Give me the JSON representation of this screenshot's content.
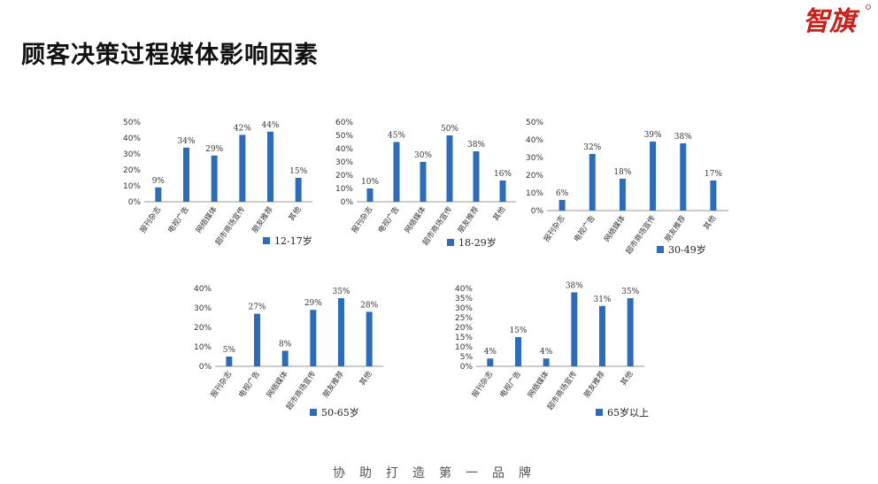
{
  "slide": {
    "title": "顾客决策过程媒体影响因素",
    "logo_text": "智旗",
    "footer": "协助打造第一品牌",
    "bar_color": "#2e6bb8"
  },
  "chart_data": [
    {
      "type": "bar",
      "categories": [
        "报刊杂志",
        "电视广告",
        "网络媒体",
        "超市商场宣传",
        "朋友推荐",
        "其他"
      ],
      "series": [
        {
          "name": "12-17岁",
          "values": [
            9,
            34,
            29,
            42,
            44,
            15
          ]
        }
      ],
      "data_labels": [
        "9%",
        "34%",
        "29%",
        "42%",
        "44%",
        "15%"
      ],
      "yticks": [
        "0%",
        "10%",
        "20%",
        "30%",
        "40%",
        "50%"
      ],
      "ylim": [
        0,
        50
      ],
      "legend": "bottom-right"
    },
    {
      "type": "bar",
      "categories": [
        "报刊杂志",
        "电视广告",
        "网络媒体",
        "超市商场宣传",
        "朋友推荐",
        "其他"
      ],
      "series": [
        {
          "name": "18-29岁",
          "values": [
            10,
            45,
            30,
            50,
            38,
            16
          ]
        }
      ],
      "data_labels": [
        "10%",
        "45%",
        "30%",
        "50%",
        "38%",
        "16%"
      ],
      "yticks": [
        "0%",
        "10%",
        "20%",
        "30%",
        "40%",
        "50%",
        "60%"
      ],
      "ylim": [
        0,
        60
      ],
      "legend": "bottom-right"
    },
    {
      "type": "bar",
      "categories": [
        "报刊杂志",
        "电视广告",
        "网络媒体",
        "超市商场宣传",
        "朋友推荐",
        "其他"
      ],
      "series": [
        {
          "name": "30-49岁",
          "values": [
            6,
            32,
            18,
            39,
            38,
            17
          ]
        }
      ],
      "data_labels": [
        "6%",
        "32%",
        "18%",
        "39%",
        "38%",
        "17%"
      ],
      "yticks": [
        "0%",
        "10%",
        "20%",
        "30%",
        "40%",
        "50%"
      ],
      "ylim": [
        0,
        50
      ],
      "legend": "bottom-right"
    },
    {
      "type": "bar",
      "categories": [
        "报刊杂志",
        "电视广告",
        "网络媒体",
        "超市商场宣传",
        "朋友推荐",
        "其他"
      ],
      "series": [
        {
          "name": "50-65岁",
          "values": [
            5,
            27,
            8,
            29,
            35,
            28
          ]
        }
      ],
      "data_labels": [
        "5%",
        "27%",
        "8%",
        "29%",
        "35%",
        "28%"
      ],
      "yticks": [
        "0%",
        "10%",
        "20%",
        "30%",
        "40%"
      ],
      "ylim": [
        0,
        40
      ],
      "legend": "bottom-right"
    },
    {
      "type": "bar",
      "categories": [
        "报刊杂志",
        "电视广告",
        "网络媒体",
        "超市商场宣传",
        "朋友推荐",
        "其他"
      ],
      "series": [
        {
          "name": "65岁以上",
          "values": [
            4,
            15,
            4,
            38,
            31,
            35
          ]
        }
      ],
      "data_labels": [
        "4%",
        "15%",
        "4%",
        "38%",
        "31%",
        "35%"
      ],
      "yticks": [
        "0%",
        "5%",
        "10%",
        "15%",
        "20%",
        "25%",
        "30%",
        "35%",
        "40%"
      ],
      "ylim": [
        0,
        40
      ],
      "legend": "bottom-right"
    }
  ]
}
